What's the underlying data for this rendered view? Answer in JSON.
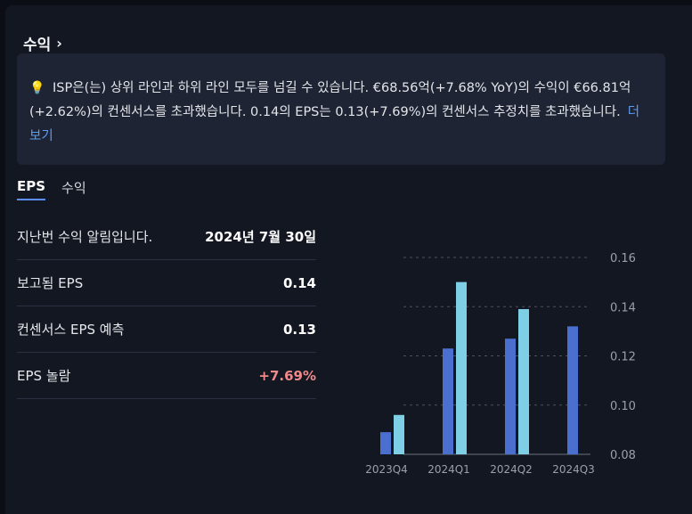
{
  "header": {
    "title": "수익"
  },
  "summary": {
    "text": "ISP은(는) 상위 라인과 하위 라인 모두를 넘길 수 있습니다. €68.56억(+7.68% YoY)의 수익이 €66.81억(+2.62%)의 컨센서스를 초과했습니다. 0.14의 EPS는 0.13(+7.69%)의 컨센서스 추정치를 초과했습니다.",
    "more_label": "더 보기"
  },
  "tabs": [
    {
      "label": "EPS",
      "active": true
    },
    {
      "label": "수익",
      "active": false
    }
  ],
  "rows": [
    {
      "label": "지난번 수익 알림입니다.",
      "value": "2024년 7월 30일"
    },
    {
      "label": "보고됨 EPS",
      "value": "0.14"
    },
    {
      "label": "컨센서스 EPS 예측",
      "value": "0.13"
    },
    {
      "label": "EPS 놀람",
      "value": "+7.69%"
    }
  ],
  "colors": {
    "estimate": "#4a6fcf",
    "actual": "#7ecfe5",
    "surprise": "#f08a8a",
    "accent": "#5b8def"
  },
  "chart_data": {
    "type": "bar",
    "categories": [
      "2023Q4",
      "2024Q1",
      "2024Q2",
      "2024Q3"
    ],
    "series": [
      {
        "values": [
          0.089,
          0.123,
          0.127,
          0.132
        ]
      },
      {
        "values": [
          0.096,
          0.15,
          0.139,
          null
        ]
      }
    ],
    "ylim": [
      0.08,
      0.16
    ],
    "yticks": [
      "0.16",
      "0.14",
      "0.12",
      "0.10",
      "0.08"
    ],
    "grid": true
  }
}
